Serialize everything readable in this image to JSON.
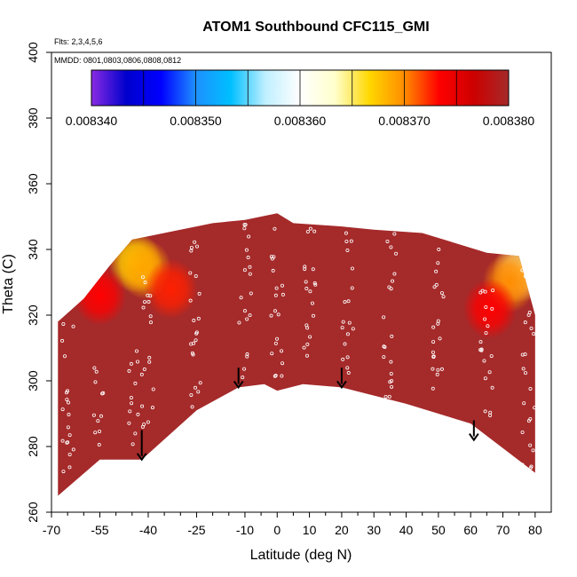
{
  "chart_data": {
    "type": "heatmap",
    "title": "ATOM1 Southbound CFC115_GMI",
    "annotations": {
      "flights": "Flts: 2,3,4,5,6",
      "dates": "MMDD: 0801,0803,0806,0808,0812"
    },
    "xlabel": "Latitude (deg N)",
    "ylabel": "Theta (C)",
    "xlim": [
      -70,
      85
    ],
    "ylim": [
      260,
      400
    ],
    "x_ticks": [
      -70,
      -55,
      -40,
      -25,
      -10,
      0,
      10,
      20,
      30,
      40,
      50,
      60,
      70,
      80
    ],
    "x_tick_labels": [
      "-70",
      "-55",
      "-40",
      "-25",
      "-10",
      "0",
      "10",
      "20",
      "30",
      "40",
      "50",
      "60",
      "70",
      "80"
    ],
    "x_minor_ticks": [
      -65,
      -60,
      -50,
      -45,
      -35,
      -30,
      -20,
      -15,
      -5,
      5,
      15,
      25,
      35,
      45,
      55,
      65,
      75
    ],
    "y_ticks": [
      260,
      280,
      300,
      320,
      340,
      360,
      380,
      400
    ],
    "y_tick_labels": [
      "260",
      "280",
      "300",
      "320",
      "340",
      "360",
      "380",
      "400"
    ],
    "colorbar": {
      "min": 0.00834,
      "max": 0.00838,
      "tick_values": [
        0.00834,
        0.00835,
        0.00836,
        0.00837,
        0.00838
      ],
      "tick_labels": [
        "0.008340",
        "0.008350",
        "0.008360",
        "0.008370",
        "0.008380"
      ],
      "colors": [
        "#8a2be2",
        "#0000cd",
        "#0000ff",
        "#1e90ff",
        "#00bfff",
        "#bfefff",
        "#ffffff",
        "#ffffcc",
        "#ffd700",
        "#ff8c00",
        "#ff0000",
        "#cd0000",
        "#a52a2a"
      ]
    },
    "field_fill_color": "#a52a2a",
    "domain_bottom": [
      [
        -68,
        265
      ],
      [
        -55,
        276
      ],
      [
        -42,
        276
      ],
      [
        -25,
        291
      ],
      [
        -12,
        298
      ],
      [
        -4,
        299
      ],
      [
        0,
        297
      ],
      [
        8,
        299
      ],
      [
        20,
        298
      ],
      [
        40,
        293
      ],
      [
        60,
        287
      ],
      [
        80,
        272
      ]
    ],
    "domain_top": [
      [
        -68,
        318
      ],
      [
        -60,
        325
      ],
      [
        -52,
        335
      ],
      [
        -45,
        343
      ],
      [
        -30,
        346
      ],
      [
        -20,
        348
      ],
      [
        -10,
        349
      ],
      [
        0,
        351
      ],
      [
        5,
        348
      ],
      [
        20,
        347
      ],
      [
        30,
        346
      ],
      [
        45,
        345
      ],
      [
        55,
        342
      ],
      [
        65,
        339
      ],
      [
        75,
        338
      ],
      [
        80,
        320
      ]
    ],
    "high_value_regions": [
      {
        "center": [
          -44,
          336
        ],
        "value": 0.00837,
        "color": "#ffd700"
      },
      {
        "center": [
          -41,
          334
        ],
        "value": 0.008372,
        "color": "#ffa500"
      },
      {
        "center": [
          -55,
          326
        ],
        "value": 0.008375,
        "color": "#ff0000"
      },
      {
        "center": [
          -33,
          328
        ],
        "value": 0.008376,
        "color": "#ff2000"
      },
      {
        "center": [
          75,
          333
        ],
        "value": 0.008368,
        "color": "#ffe680"
      },
      {
        "center": [
          72,
          330
        ],
        "value": 0.008373,
        "color": "#ff8c00"
      },
      {
        "center": [
          66,
          322
        ],
        "value": 0.008377,
        "color": "#ff0000"
      }
    ],
    "arrows": [
      {
        "lat": -42,
        "theta_top": 285,
        "theta_bottom": 276
      },
      {
        "lat": -12,
        "theta_top": 304,
        "theta_bottom": 298
      },
      {
        "lat": 20,
        "theta_top": 304,
        "theta_bottom": 298
      },
      {
        "lat": 61,
        "theta_top": 288,
        "theta_bottom": 282
      }
    ],
    "observation_tracks": [
      {
        "lat": -65,
        "theta_range": [
          270,
          318
        ]
      },
      {
        "lat": -55,
        "theta_range": [
          278,
          306
        ]
      },
      {
        "lat": -45,
        "theta_range": [
          280,
          310
        ]
      },
      {
        "lat": -40,
        "theta_range": [
          285,
          332
        ]
      },
      {
        "lat": -25,
        "theta_range": [
          292,
          346
        ]
      },
      {
        "lat": -10,
        "theta_range": [
          300,
          348
        ]
      },
      {
        "lat": 0,
        "theta_range": [
          300,
          351
        ]
      },
      {
        "lat": 10,
        "theta_range": [
          300,
          348
        ]
      },
      {
        "lat": 22,
        "theta_range": [
          300,
          346
        ]
      },
      {
        "lat": 35,
        "theta_range": [
          295,
          345
        ]
      },
      {
        "lat": 50,
        "theta_range": [
          290,
          343
        ]
      },
      {
        "lat": 65,
        "theta_range": [
          286,
          338
        ]
      },
      {
        "lat": 78,
        "theta_range": [
          273,
          335
        ]
      }
    ],
    "grid": false,
    "legend": "colorbar-top"
  }
}
